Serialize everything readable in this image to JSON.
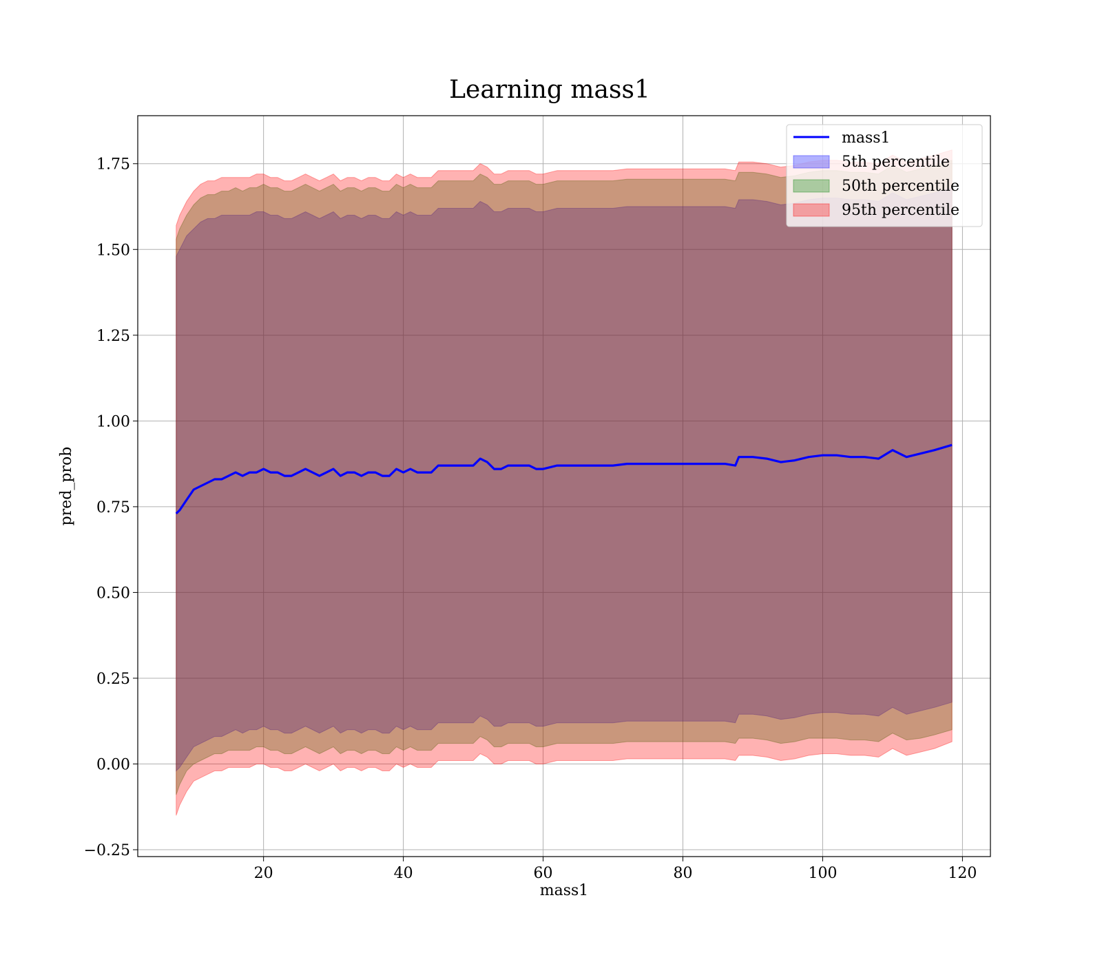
{
  "chart_data": {
    "type": "area",
    "title": "Learning mass1",
    "xlabel": "mass1",
    "ylabel": "pred_prob",
    "xlim": [
      2,
      124
    ],
    "ylim": [
      -0.27,
      1.89
    ],
    "xticks": [
      20,
      40,
      60,
      80,
      100,
      120
    ],
    "xtick_labels": [
      "20",
      "40",
      "60",
      "80",
      "100",
      "120"
    ],
    "yticks": [
      -0.25,
      0.0,
      0.25,
      0.5,
      0.75,
      1.0,
      1.25,
      1.5,
      1.75
    ],
    "ytick_labels": [
      "−0.25",
      "0.00",
      "0.25",
      "0.50",
      "0.75",
      "1.00",
      "1.25",
      "1.50",
      "1.75"
    ],
    "grid": true,
    "legend_position": "top-right",
    "colors": {
      "line": "#0000ff",
      "band_5th": "#0000ff",
      "band_50th": "#008000",
      "band_95th": "#ff0000"
    },
    "x": [
      7.5,
      8,
      9,
      10,
      11,
      12,
      13,
      14,
      15,
      16,
      17,
      18,
      19,
      20,
      21,
      22,
      23,
      24,
      25,
      26,
      27,
      28,
      29,
      30,
      31,
      32,
      33,
      34,
      35,
      36,
      37,
      38,
      39,
      40,
      41,
      42,
      43,
      44,
      45,
      46,
      47,
      48,
      49,
      50,
      51,
      52,
      53,
      54,
      55,
      56,
      57,
      58,
      59,
      60,
      62,
      64,
      66,
      68,
      70,
      72,
      74,
      76,
      78,
      80,
      82,
      84,
      86,
      87.5,
      88,
      90,
      92,
      94,
      96,
      98,
      100,
      102,
      104,
      106,
      108,
      110,
      112,
      114,
      116,
      118.5
    ],
    "series": [
      {
        "name": "mass1",
        "values": [
          0.73,
          0.74,
          0.77,
          0.8,
          0.81,
          0.82,
          0.83,
          0.83,
          0.84,
          0.85,
          0.84,
          0.85,
          0.85,
          0.86,
          0.85,
          0.85,
          0.84,
          0.84,
          0.85,
          0.86,
          0.85,
          0.84,
          0.85,
          0.86,
          0.84,
          0.85,
          0.85,
          0.84,
          0.85,
          0.85,
          0.84,
          0.84,
          0.86,
          0.85,
          0.86,
          0.85,
          0.85,
          0.85,
          0.87,
          0.87,
          0.87,
          0.87,
          0.87,
          0.87,
          0.89,
          0.88,
          0.86,
          0.86,
          0.87,
          0.87,
          0.87,
          0.87,
          0.86,
          0.86,
          0.87,
          0.87,
          0.87,
          0.87,
          0.87,
          0.875,
          0.875,
          0.875,
          0.875,
          0.875,
          0.875,
          0.875,
          0.875,
          0.87,
          0.895,
          0.895,
          0.89,
          0.88,
          0.885,
          0.895,
          0.9,
          0.9,
          0.895,
          0.895,
          0.89,
          0.915,
          0.895,
          0.905,
          0.915,
          0.93
        ]
      }
    ],
    "bands": [
      {
        "name": "5th percentile",
        "upper": [
          1.48,
          1.5,
          1.54,
          1.56,
          1.58,
          1.59,
          1.59,
          1.6,
          1.6,
          1.6,
          1.6,
          1.6,
          1.61,
          1.61,
          1.6,
          1.6,
          1.59,
          1.59,
          1.6,
          1.61,
          1.6,
          1.59,
          1.6,
          1.61,
          1.59,
          1.6,
          1.6,
          1.59,
          1.6,
          1.6,
          1.59,
          1.59,
          1.61,
          1.6,
          1.61,
          1.6,
          1.6,
          1.6,
          1.62,
          1.62,
          1.62,
          1.62,
          1.62,
          1.62,
          1.64,
          1.63,
          1.61,
          1.61,
          1.62,
          1.62,
          1.62,
          1.62,
          1.61,
          1.61,
          1.62,
          1.62,
          1.62,
          1.62,
          1.62,
          1.625,
          1.625,
          1.625,
          1.625,
          1.625,
          1.625,
          1.625,
          1.625,
          1.62,
          1.645,
          1.645,
          1.64,
          1.63,
          1.635,
          1.645,
          1.65,
          1.65,
          1.645,
          1.645,
          1.64,
          1.665,
          1.645,
          1.655,
          1.665,
          1.68
        ],
        "lower": [
          -0.02,
          -0.01,
          0.02,
          0.05,
          0.06,
          0.07,
          0.08,
          0.08,
          0.09,
          0.1,
          0.09,
          0.1,
          0.1,
          0.11,
          0.1,
          0.1,
          0.09,
          0.09,
          0.1,
          0.11,
          0.1,
          0.09,
          0.1,
          0.11,
          0.09,
          0.1,
          0.1,
          0.09,
          0.1,
          0.1,
          0.09,
          0.09,
          0.11,
          0.1,
          0.11,
          0.1,
          0.1,
          0.1,
          0.12,
          0.12,
          0.12,
          0.12,
          0.12,
          0.12,
          0.14,
          0.13,
          0.11,
          0.11,
          0.12,
          0.12,
          0.12,
          0.12,
          0.11,
          0.11,
          0.12,
          0.12,
          0.12,
          0.12,
          0.12,
          0.125,
          0.125,
          0.125,
          0.125,
          0.125,
          0.125,
          0.125,
          0.125,
          0.12,
          0.145,
          0.145,
          0.14,
          0.13,
          0.135,
          0.145,
          0.15,
          0.15,
          0.145,
          0.145,
          0.14,
          0.165,
          0.145,
          0.155,
          0.165,
          0.18
        ]
      },
      {
        "name": "50th percentile",
        "upper": [
          1.53,
          1.56,
          1.6,
          1.63,
          1.65,
          1.66,
          1.66,
          1.67,
          1.67,
          1.68,
          1.67,
          1.68,
          1.68,
          1.69,
          1.68,
          1.68,
          1.67,
          1.67,
          1.68,
          1.69,
          1.68,
          1.67,
          1.68,
          1.69,
          1.67,
          1.68,
          1.68,
          1.67,
          1.68,
          1.68,
          1.67,
          1.67,
          1.69,
          1.68,
          1.69,
          1.68,
          1.68,
          1.68,
          1.7,
          1.7,
          1.7,
          1.7,
          1.7,
          1.7,
          1.72,
          1.71,
          1.69,
          1.69,
          1.7,
          1.7,
          1.7,
          1.7,
          1.69,
          1.69,
          1.7,
          1.7,
          1.7,
          1.7,
          1.7,
          1.705,
          1.705,
          1.705,
          1.705,
          1.705,
          1.705,
          1.705,
          1.705,
          1.7,
          1.725,
          1.725,
          1.72,
          1.71,
          1.715,
          1.725,
          1.73,
          1.73,
          1.725,
          1.725,
          1.72,
          1.745,
          1.725,
          1.735,
          1.745,
          1.76
        ],
        "lower": [
          -0.09,
          -0.06,
          -0.02,
          0.0,
          0.01,
          0.02,
          0.03,
          0.03,
          0.04,
          0.04,
          0.04,
          0.04,
          0.05,
          0.05,
          0.04,
          0.04,
          0.03,
          0.03,
          0.04,
          0.05,
          0.04,
          0.03,
          0.04,
          0.05,
          0.03,
          0.04,
          0.04,
          0.03,
          0.04,
          0.04,
          0.03,
          0.03,
          0.05,
          0.04,
          0.05,
          0.04,
          0.04,
          0.04,
          0.06,
          0.06,
          0.06,
          0.06,
          0.06,
          0.06,
          0.08,
          0.07,
          0.05,
          0.05,
          0.06,
          0.06,
          0.06,
          0.06,
          0.05,
          0.05,
          0.06,
          0.06,
          0.06,
          0.06,
          0.06,
          0.065,
          0.065,
          0.065,
          0.065,
          0.065,
          0.065,
          0.065,
          0.065,
          0.06,
          0.075,
          0.075,
          0.07,
          0.06,
          0.065,
          0.075,
          0.075,
          0.075,
          0.07,
          0.07,
          0.065,
          0.09,
          0.07,
          0.075,
          0.085,
          0.1
        ]
      },
      {
        "name": "95th percentile",
        "upper": [
          1.57,
          1.6,
          1.64,
          1.67,
          1.69,
          1.7,
          1.7,
          1.71,
          1.71,
          1.71,
          1.71,
          1.71,
          1.72,
          1.72,
          1.71,
          1.71,
          1.7,
          1.7,
          1.71,
          1.72,
          1.71,
          1.7,
          1.71,
          1.72,
          1.7,
          1.71,
          1.71,
          1.7,
          1.71,
          1.71,
          1.7,
          1.7,
          1.72,
          1.71,
          1.72,
          1.71,
          1.71,
          1.71,
          1.73,
          1.73,
          1.73,
          1.73,
          1.73,
          1.73,
          1.75,
          1.74,
          1.72,
          1.72,
          1.73,
          1.73,
          1.73,
          1.73,
          1.72,
          1.72,
          1.73,
          1.73,
          1.73,
          1.73,
          1.73,
          1.735,
          1.735,
          1.735,
          1.735,
          1.735,
          1.735,
          1.735,
          1.735,
          1.73,
          1.755,
          1.755,
          1.75,
          1.74,
          1.745,
          1.755,
          1.76,
          1.76,
          1.755,
          1.755,
          1.75,
          1.775,
          1.755,
          1.765,
          1.775,
          1.79
        ],
        "lower": [
          -0.15,
          -0.12,
          -0.08,
          -0.05,
          -0.04,
          -0.03,
          -0.02,
          -0.02,
          -0.01,
          -0.01,
          -0.01,
          -0.01,
          0.0,
          0.0,
          -0.01,
          -0.01,
          -0.02,
          -0.02,
          -0.01,
          0.0,
          -0.01,
          -0.02,
          -0.01,
          0.0,
          -0.02,
          -0.01,
          -0.01,
          -0.02,
          -0.01,
          -0.01,
          -0.02,
          -0.02,
          0.0,
          -0.01,
          0.0,
          -0.01,
          -0.01,
          -0.01,
          0.01,
          0.01,
          0.01,
          0.01,
          0.01,
          0.01,
          0.03,
          0.02,
          0.0,
          0.0,
          0.01,
          0.01,
          0.01,
          0.01,
          0.0,
          0.0,
          0.01,
          0.01,
          0.01,
          0.01,
          0.01,
          0.015,
          0.015,
          0.015,
          0.015,
          0.015,
          0.015,
          0.015,
          0.015,
          0.01,
          0.025,
          0.025,
          0.02,
          0.01,
          0.015,
          0.025,
          0.03,
          0.03,
          0.025,
          0.025,
          0.02,
          0.045,
          0.025,
          0.035,
          0.045,
          0.065
        ]
      }
    ],
    "legend": [
      "mass1",
      "5th percentile",
      "50th percentile",
      "95th percentile"
    ]
  }
}
